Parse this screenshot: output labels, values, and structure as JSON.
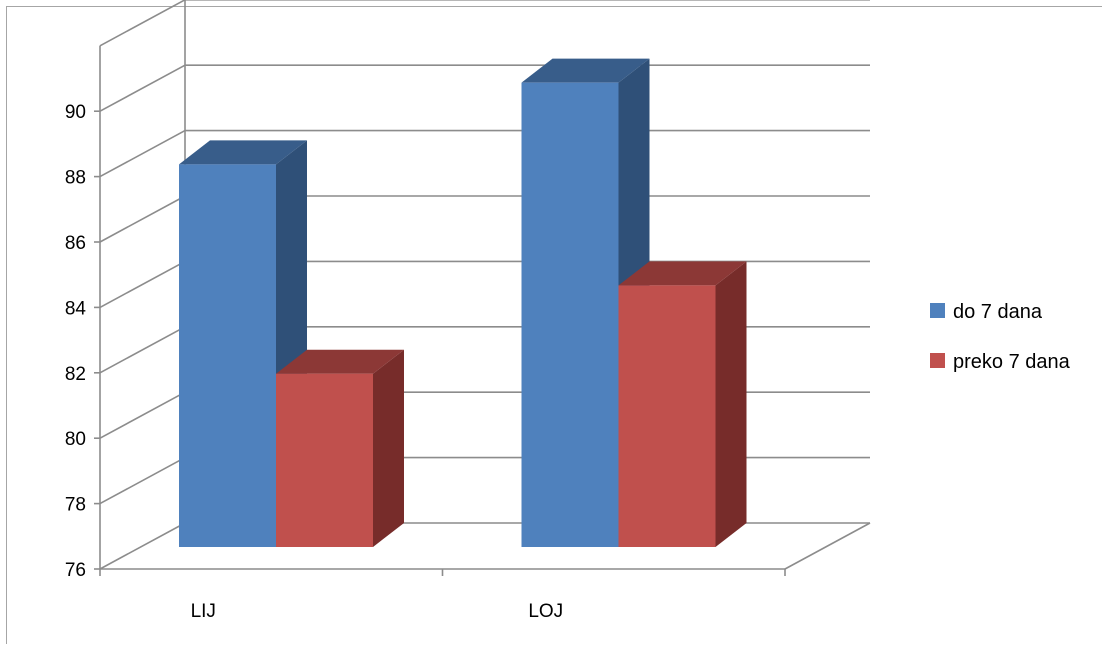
{
  "chart_data": {
    "type": "bar",
    "style": "3d-clustered-column",
    "categories": [
      "LIJ",
      "LOJ"
    ],
    "series": [
      {
        "name": "do 7 dana",
        "values": [
          87.7,
          90.2
        ],
        "color": "#4f81bd",
        "side_color": "#2f5078",
        "top_color": "#385d8a"
      },
      {
        "name": "preko 7 dana",
        "values": [
          81.3,
          84.0
        ],
        "color": "#c0504d",
        "side_color": "#772c2a",
        "top_color": "#8c3836"
      }
    ],
    "y_ticks": [
      "76",
      "78",
      "80",
      "82",
      "84",
      "86",
      "88",
      "90"
    ],
    "ylim": [
      76,
      92
    ],
    "grid": true,
    "legend_position": "right"
  }
}
